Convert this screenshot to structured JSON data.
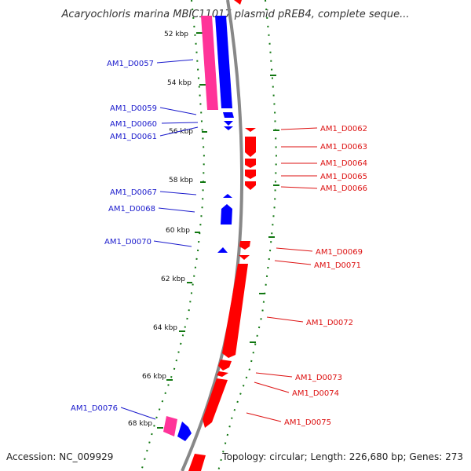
{
  "title": "Acaryochloris marina MBIC11017 plasmid pREB4, complete seque...",
  "accession": "Accession: NC_009929",
  "topology": "Topology: circular; Length: 226,680 bp; Genes: 273",
  "colors": {
    "forward_cds": "#0000ff",
    "reverse_cds": "#ff0000",
    "forward_highlight": "#ff3399",
    "backbone": "#888888",
    "gc_dots": "#117711"
  },
  "ticks": [
    "52 kbp",
    "54 kbp",
    "56 kbp",
    "58 kbp",
    "60 kbp",
    "62 kbp",
    "64 kbp",
    "66 kbp",
    "68 kbp"
  ],
  "genes_left": [
    "AM1_D0057",
    "AM1_D0059",
    "AM1_D0060",
    "AM1_D0061",
    "AM1_D0067",
    "AM1_D0068",
    "AM1_D0070",
    "AM1_D0076"
  ],
  "genes_right": [
    "AM1_D0062",
    "AM1_D0063",
    "AM1_D0064",
    "AM1_D0065",
    "AM1_D0066",
    "AM1_D0069",
    "AM1_D0071",
    "AM1_D0072",
    "AM1_D0073",
    "AM1_D0074",
    "AM1_D0075"
  ]
}
